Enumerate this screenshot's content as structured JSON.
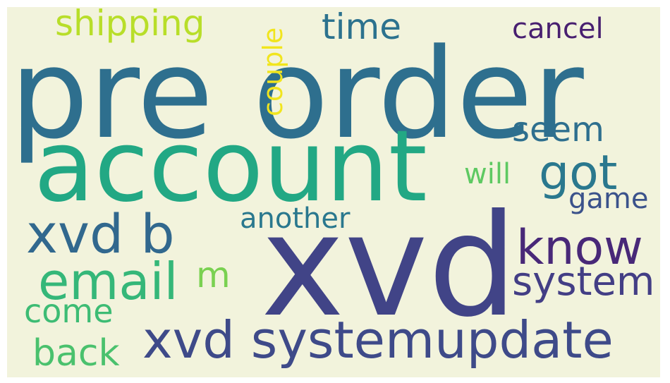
{
  "cloud": {
    "background": "#f2f3dc",
    "words": [
      {
        "text": "pre order",
        "color": "#2e6f8e"
      },
      {
        "text": "account",
        "color": "#22a884"
      },
      {
        "text": "xvd",
        "color": "#414487"
      },
      {
        "text": "xvd systemupdate",
        "color": "#3e4a89"
      },
      {
        "text": "xvd b",
        "color": "#31688e"
      },
      {
        "text": "email",
        "color": "#35b779"
      },
      {
        "text": "know",
        "color": "#482878"
      },
      {
        "text": "system",
        "color": "#433e85"
      },
      {
        "text": "got",
        "color": "#2a788e"
      },
      {
        "text": "seem",
        "color": "#2e6f8e"
      },
      {
        "text": "time",
        "color": "#2c728e"
      },
      {
        "text": "cancel",
        "color": "#481f70"
      },
      {
        "text": "shipping",
        "color": "#b8de29"
      },
      {
        "text": "couple",
        "color": "#f1e51d"
      },
      {
        "text": "another",
        "color": "#2a788e"
      },
      {
        "text": "will",
        "color": "#5ec962"
      },
      {
        "text": "game",
        "color": "#3b528b"
      },
      {
        "text": "come",
        "color": "#3dbc74"
      },
      {
        "text": "back",
        "color": "#4ac16d"
      },
      {
        "text": "m",
        "color": "#7ad151"
      }
    ]
  }
}
